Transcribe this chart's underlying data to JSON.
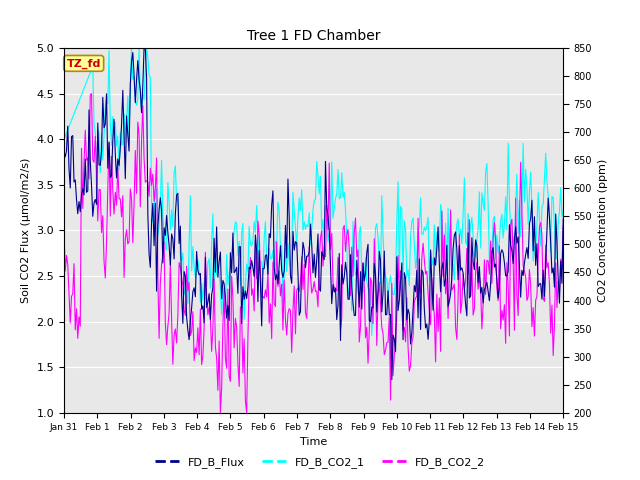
{
  "title": "Tree 1 FD Chamber",
  "xlabel": "Time",
  "ylabel_left": "Soil CO2 Flux (μmol/m2/s)",
  "ylabel_right": "CO2 Concentration (ppm)",
  "ylim_left": [
    1.0,
    5.0
  ],
  "ylim_right": [
    200,
    850
  ],
  "xtick_labels": [
    "Jan 31",
    "Feb 1",
    "Feb 2",
    "Feb 3",
    "Feb 4",
    "Feb 5",
    "Feb 6",
    "Feb 7",
    "Feb 8",
    "Feb 9",
    "Feb 10",
    "Feb 11",
    "Feb 12",
    "Feb 13",
    "Feb 14",
    "Feb 15"
  ],
  "yticks_left": [
    1.0,
    1.5,
    2.0,
    2.5,
    3.0,
    3.5,
    4.0,
    4.5,
    5.0
  ],
  "yticks_right": [
    200,
    250,
    300,
    350,
    400,
    450,
    500,
    550,
    600,
    650,
    700,
    750,
    800,
    850
  ],
  "colors": {
    "FD_B_Flux": "#00008B",
    "FD_B_CO2_1": "#00FFFF",
    "FD_B_CO2_2": "#FF00FF"
  },
  "annotation_text": "TZ_fd",
  "annotation_bg": "#FFFF99",
  "annotation_border": "#B8860B",
  "annotation_text_color": "#CC0000",
  "plot_bg": "#E8E8E8",
  "fig_bg": "#FFFFFF",
  "grid_color": "#FFFFFF",
  "n_points": 400,
  "seed": 42
}
